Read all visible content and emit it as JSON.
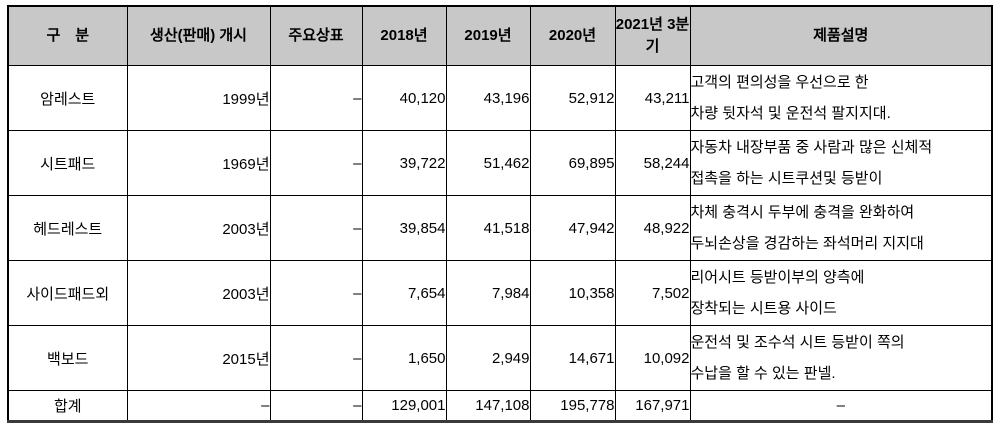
{
  "table": {
    "columns": {
      "category": "구　분",
      "start": "생산(판매) 개시",
      "brand": "주요상표",
      "y2018": "2018년",
      "y2019": "2019년",
      "y2020": "2020년",
      "y2021_line1": "2021년",
      "y2021_line2": "3분기",
      "desc": "제품설명"
    },
    "rows": [
      {
        "category": "암레스트",
        "start": "1999년",
        "brand": "–",
        "y2018": "40,120",
        "y2019": "43,196",
        "y2020": "52,912",
        "y2021q3": "43,211",
        "desc": [
          "고객의 편의성을 우선으로 한",
          "차량 뒷자석 및 운전석 팔지지대."
        ]
      },
      {
        "category": "시트패드",
        "start": "1969년",
        "brand": "–",
        "y2018": "39,722",
        "y2019": "51,462",
        "y2020": "69,895",
        "y2021q3": "58,244",
        "desc": [
          "자동차 내장부품 중 사람과 많은 신체적",
          "접촉을 하는 시트쿠션및 등받이"
        ]
      },
      {
        "category": "헤드레스트",
        "start": "2003년",
        "brand": "–",
        "y2018": "39,854",
        "y2019": "41,518",
        "y2020": "47,942",
        "y2021q3": "48,922",
        "desc": [
          "차체 충격시 두부에 충격을 완화하여",
          "두뇌손상을 경감하는 좌석머리 지지대"
        ]
      },
      {
        "category": "사이드패드외",
        "start": "2003년",
        "brand": "–",
        "y2018": "7,654",
        "y2019": "7,984",
        "y2020": "10,358",
        "y2021q3": "7,502",
        "desc": [
          "리어시트 등받이부의 양측에",
          "장착되는 시트용 사이드"
        ]
      },
      {
        "category": "백보드",
        "start": "2015년",
        "brand": "–",
        "y2018": "1,650",
        "y2019": "2,949",
        "y2020": "14,671",
        "y2021q3": "10,092",
        "desc": [
          "운전석 및 조수석 시트 등받이 쪽의",
          "수납을 할 수 있는 판넬."
        ]
      }
    ],
    "total": {
      "category": "합계",
      "start": "–",
      "brand": "–",
      "y2018": "129,001",
      "y2019": "147,108",
      "y2020": "195,778",
      "y2021q3": "167,971",
      "desc": "–"
    }
  }
}
